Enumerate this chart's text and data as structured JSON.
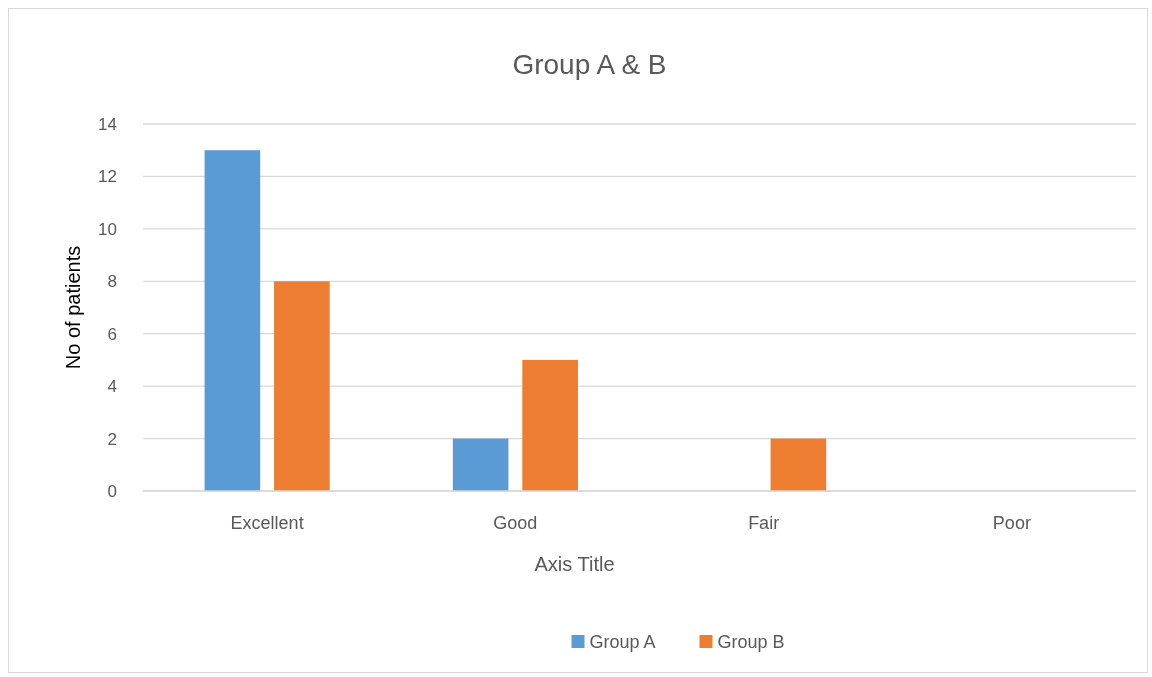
{
  "chart_data": {
    "type": "bar",
    "title": "Group A & B",
    "xlabel": "Axis Title",
    "ylabel": "No of patients",
    "categories": [
      "Excellent",
      "Good",
      "Fair",
      "Poor"
    ],
    "series": [
      {
        "name": "Group A",
        "color": "#5b9bd5",
        "values": [
          13,
          2,
          0,
          0
        ]
      },
      {
        "name": "Group B",
        "color": "#ed7d31",
        "values": [
          8,
          5,
          2,
          0
        ]
      }
    ],
    "ylim": [
      0,
      14
    ],
    "yticks": [
      0,
      2,
      4,
      6,
      8,
      10,
      12,
      14
    ],
    "grid": "y",
    "legend": "bottom"
  }
}
